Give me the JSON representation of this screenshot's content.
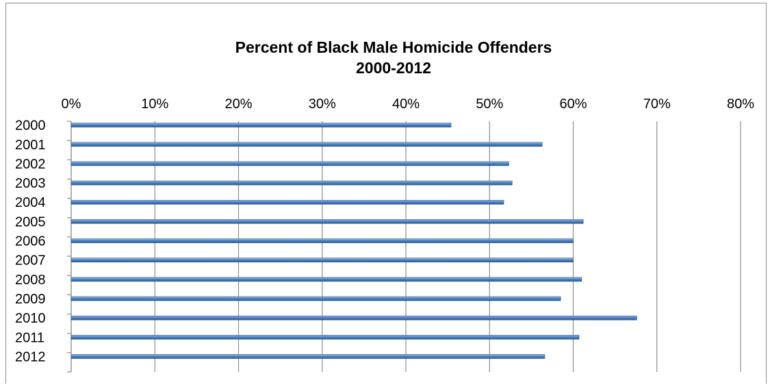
{
  "chart_data": {
    "type": "bar",
    "orientation": "horizontal",
    "title": "Percent of Black Male Homicide Offenders",
    "subtitle": "2000-2012",
    "xlabel": "",
    "ylabel": "",
    "categories": [
      "2000",
      "2001",
      "2002",
      "2003",
      "2004",
      "2005",
      "2006",
      "2007",
      "2008",
      "2009",
      "2010",
      "2011",
      "2012"
    ],
    "values": [
      45.4,
      56.3,
      52.3,
      52.7,
      51.7,
      61.2,
      60.0,
      60.0,
      61.0,
      58.5,
      67.6,
      60.7,
      56.6
    ],
    "xlim": [
      0,
      80
    ],
    "xticks": [
      "0%",
      "10%",
      "20%",
      "30%",
      "40%",
      "50%",
      "60%",
      "70%",
      "80%"
    ],
    "x_axis_position": "top",
    "grid": "vertical",
    "legend": "none",
    "colors": {
      "bar": "#4f81bd",
      "bar_dark": "#2c5d96",
      "bar_light": "#9ebde6",
      "grid": "#8c8c8c"
    }
  }
}
